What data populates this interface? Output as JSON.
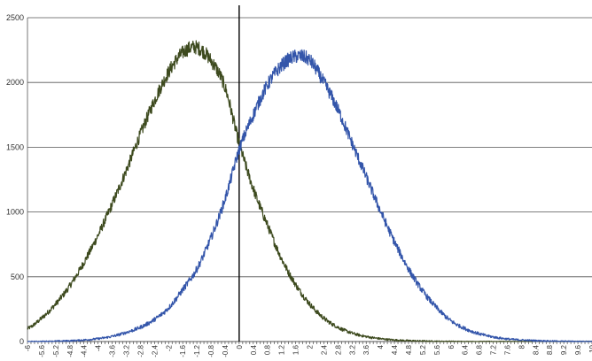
{
  "chart_data": {
    "type": "line",
    "title": "",
    "xlabel": "",
    "ylabel": "",
    "xlim": [
      -6,
      10
    ],
    "ylim": [
      0,
      2500
    ],
    "y_ticks": [
      "0",
      "500",
      "1000",
      "1500",
      "2000",
      "2500"
    ],
    "x_ticks": [
      "-6",
      "-5.6",
      "-5.2",
      "-4.8",
      "-4.4",
      "-4",
      "-3.6",
      "-3.2",
      "-2.8",
      "-2.4",
      "-2",
      "-1.6",
      "-1.2",
      "-0.8",
      "-0.4",
      "0",
      "0.4",
      "0.8",
      "1.2",
      "1.6",
      "2",
      "2.4",
      "2.8",
      "3.2",
      "3.6",
      "4",
      "4.4",
      "4.8",
      "5.2",
      "5.6",
      "6",
      "6.4",
      "6.8",
      "7.2",
      "7.6",
      "8",
      "8.4",
      "8.8",
      "9.2",
      "9.6",
      "10"
    ],
    "grid": "horizontal",
    "legend": "none",
    "vertical_line_at_x": 0,
    "series": [
      {
        "color": "#3d4a1e",
        "x": [
          -6,
          -5.6,
          -5.2,
          -4.8,
          -4.4,
          -4,
          -3.6,
          -3.2,
          -2.8,
          -2.4,
          -2,
          -1.6,
          -1.2,
          -0.8,
          -0.4,
          0,
          0.4,
          0.8,
          1.2,
          1.6,
          2,
          2.4,
          2.8,
          3.2,
          3.6,
          4,
          4.4,
          4.8,
          5.2,
          5.6,
          6,
          6.4,
          6.8,
          7.2,
          7.6,
          8,
          8.4,
          8.8,
          9.2,
          9.6,
          10
        ],
        "values": [
          100,
          180,
          290,
          430,
          610,
          820,
          1060,
          1320,
          1600,
          1860,
          2080,
          2230,
          2270,
          2170,
          1960,
          1530,
          1180,
          900,
          640,
          440,
          290,
          180,
          110,
          65,
          38,
          22,
          12,
          7,
          4,
          2,
          1,
          0,
          0,
          0,
          0,
          0,
          0,
          0,
          0,
          0,
          0
        ]
      },
      {
        "color": "#3355aa",
        "x": [
          -6,
          -5.6,
          -5.2,
          -4.8,
          -4.4,
          -4,
          -3.6,
          -3.2,
          -2.8,
          -2.4,
          -2,
          -1.6,
          -1.2,
          -0.8,
          -0.4,
          0,
          0.4,
          0.8,
          1.2,
          1.6,
          2,
          2.4,
          2.8,
          3.2,
          3.6,
          4,
          4.4,
          4.8,
          5.2,
          5.6,
          6,
          6.4,
          6.8,
          7.2,
          7.6,
          8,
          8.4,
          8.8,
          9.2,
          9.6,
          10
        ],
        "values": [
          0,
          1,
          3,
          6,
          12,
          22,
          40,
          70,
          110,
          170,
          260,
          400,
          560,
          800,
          1100,
          1480,
          1750,
          1980,
          2130,
          2200,
          2170,
          2000,
          1790,
          1530,
          1270,
          1010,
          770,
          560,
          390,
          260,
          160,
          100,
          60,
          35,
          20,
          12,
          7,
          4,
          2,
          1,
          1
        ]
      }
    ]
  }
}
